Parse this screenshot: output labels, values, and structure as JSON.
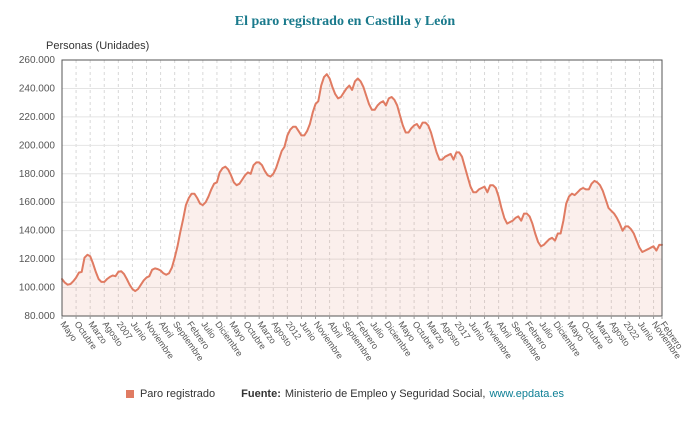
{
  "page": {
    "title": "El paro registrado en Castilla y León",
    "y_axis_title": "Personas (Unidades)"
  },
  "legend": {
    "label": "Paro registrado"
  },
  "footer": {
    "source_label": "Fuente:",
    "source_text": "Ministerio de Empleo y Seguridad Social,",
    "link": "www.epdata.es"
  },
  "colors": {
    "line": "#e07b62",
    "fill": "rgba(224,123,98,0.12)",
    "title": "#1a7a8c",
    "link": "#0e7f95",
    "grid": "#e4e4e4",
    "grid_dashed": "#d8d8d8",
    "border": "#555555",
    "tick_text": "#555555"
  },
  "chart_data": {
    "type": "area",
    "title": "El paro registrado en Castilla y León",
    "ylabel": "Personas (Unidades)",
    "series_name": "Paro registrado",
    "unit": "personas",
    "ylim": [
      80000,
      260000
    ],
    "legend_position": "bottom",
    "grid": true,
    "y_ticks": [
      {
        "v": 80000,
        "label": "80.000"
      },
      {
        "v": 100000,
        "label": "100.000"
      },
      {
        "v": 120000,
        "label": "120.000"
      },
      {
        "v": 140000,
        "label": "140.000"
      },
      {
        "v": 160000,
        "label": "160.000"
      },
      {
        "v": 180000,
        "label": "180.000"
      },
      {
        "v": 200000,
        "label": "200.000"
      },
      {
        "v": 220000,
        "label": "220.000"
      },
      {
        "v": 240000,
        "label": "240.000"
      },
      {
        "v": 260000,
        "label": "260.000"
      }
    ],
    "x_ticks": [
      {
        "i": 0,
        "label": "Mayo"
      },
      {
        "i": 5,
        "label": "Octubre"
      },
      {
        "i": 10,
        "label": "Marzo"
      },
      {
        "i": 15,
        "label": "Agosto"
      },
      {
        "i": 20,
        "label": "2007"
      },
      {
        "i": 25,
        "label": "Junio"
      },
      {
        "i": 30,
        "label": "Noviembre"
      },
      {
        "i": 35,
        "label": "Abril"
      },
      {
        "i": 40,
        "label": "Septiembre"
      },
      {
        "i": 45,
        "label": "Febrero"
      },
      {
        "i": 50,
        "label": "Julio"
      },
      {
        "i": 55,
        "label": "Diciembre"
      },
      {
        "i": 60,
        "label": "Mayo"
      },
      {
        "i": 65,
        "label": "Octubre"
      },
      {
        "i": 70,
        "label": "Marzo"
      },
      {
        "i": 75,
        "label": "Agosto"
      },
      {
        "i": 80,
        "label": "2012"
      },
      {
        "i": 85,
        "label": "Junio"
      },
      {
        "i": 90,
        "label": "Noviembre"
      },
      {
        "i": 95,
        "label": "Abril"
      },
      {
        "i": 100,
        "label": "Septiembre"
      },
      {
        "i": 105,
        "label": "Febrero"
      },
      {
        "i": 110,
        "label": "Julio"
      },
      {
        "i": 115,
        "label": "Diciembre"
      },
      {
        "i": 120,
        "label": "Mayo"
      },
      {
        "i": 125,
        "label": "Octubre"
      },
      {
        "i": 130,
        "label": "Marzo"
      },
      {
        "i": 135,
        "label": "Agosto"
      },
      {
        "i": 140,
        "label": "2017"
      },
      {
        "i": 145,
        "label": "Junio"
      },
      {
        "i": 150,
        "label": "Noviembre"
      },
      {
        "i": 155,
        "label": "Abril"
      },
      {
        "i": 160,
        "label": "Septiembre"
      },
      {
        "i": 165,
        "label": "Febrero"
      },
      {
        "i": 170,
        "label": "Julio"
      },
      {
        "i": 175,
        "label": "Diciembre"
      },
      {
        "i": 180,
        "label": "Mayo"
      },
      {
        "i": 185,
        "label": "Octubre"
      },
      {
        "i": 190,
        "label": "Marzo"
      },
      {
        "i": 195,
        "label": "Agosto"
      },
      {
        "i": 200,
        "label": "2022"
      },
      {
        "i": 205,
        "label": "Junio"
      },
      {
        "i": 210,
        "label": "Noviembre"
      },
      {
        "i": 213,
        "label": "Febrero"
      }
    ],
    "values": [
      106000,
      103500,
      102000,
      102500,
      104500,
      107000,
      110500,
      111000,
      121000,
      123000,
      122000,
      117000,
      111000,
      106000,
      104000,
      104000,
      106000,
      107500,
      108500,
      108000,
      111000,
      111500,
      109500,
      106000,
      102000,
      99000,
      97500,
      99000,
      102000,
      105000,
      107000,
      108000,
      112500,
      113500,
      113000,
      112000,
      110000,
      109000,
      110000,
      114000,
      121000,
      129000,
      139000,
      148000,
      158000,
      163000,
      166000,
      166000,
      163000,
      159000,
      158000,
      160000,
      164000,
      169000,
      173000,
      174000,
      181000,
      184000,
      185000,
      183000,
      179000,
      174000,
      172000,
      173000,
      176000,
      179000,
      181000,
      180000,
      186000,
      188000,
      188000,
      186000,
      182000,
      179000,
      178000,
      180000,
      184000,
      190000,
      196000,
      199000,
      207000,
      211000,
      213000,
      213000,
      210000,
      207000,
      207000,
      210000,
      215000,
      223000,
      229000,
      231000,
      242000,
      248000,
      250000,
      247000,
      241000,
      236000,
      233000,
      234000,
      237000,
      240000,
      242000,
      239000,
      245000,
      247000,
      245000,
      241000,
      235000,
      229000,
      225000,
      225000,
      228000,
      230000,
      231000,
      228000,
      233000,
      234000,
      232000,
      228000,
      221000,
      214000,
      209000,
      209000,
      212000,
      214000,
      215000,
      212000,
      216000,
      216000,
      214000,
      209000,
      202000,
      195000,
      190000,
      190000,
      192000,
      193000,
      194000,
      190000,
      195000,
      195000,
      192000,
      185000,
      178000,
      171000,
      167000,
      167000,
      169000,
      170000,
      171000,
      167000,
      172000,
      172000,
      170000,
      164000,
      156000,
      149000,
      145000,
      146000,
      147000,
      149000,
      150000,
      147000,
      152000,
      152000,
      150000,
      145000,
      138000,
      132000,
      129000,
      130000,
      132000,
      134000,
      135000,
      133000,
      138000,
      138000,
      147000,
      159000,
      164000,
      166000,
      165000,
      167000,
      169000,
      170000,
      169000,
      169000,
      173000,
      175000,
      174000,
      172000,
      168000,
      162000,
      156000,
      154000,
      152000,
      149000,
      145000,
      140000,
      143000,
      143000,
      141000,
      138000,
      133000,
      128000,
      125000,
      126000,
      127000,
      128000,
      129000,
      126000,
      130000,
      130000
    ]
  }
}
